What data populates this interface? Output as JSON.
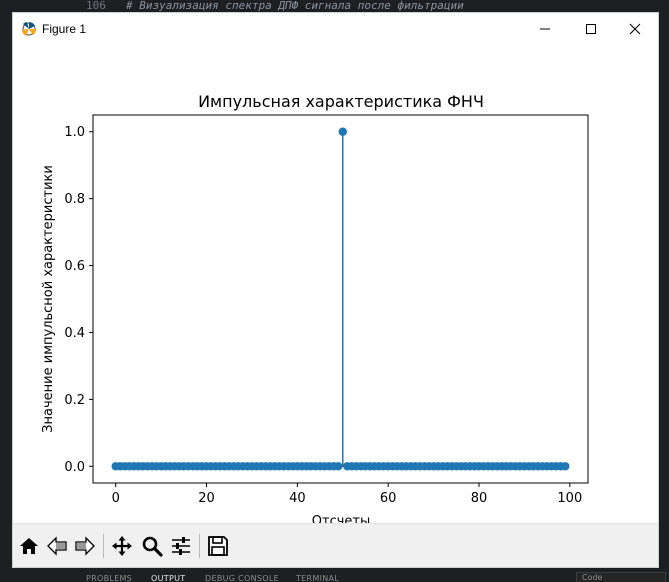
{
  "editor": {
    "line_number": "106",
    "code_comment": "# Визуализация спектра ДПФ сигнала после фильтрации"
  },
  "bottom_panel": {
    "tabs": [
      "PROBLEMS",
      "OUTPUT",
      "DEBUG CONSOLE",
      "TERMINAL"
    ],
    "active_tab": "OUTPUT",
    "side_input_text": "Code"
  },
  "window": {
    "title": "Figure 1",
    "icon": "matplotlib-icon",
    "controls": [
      "minimize-icon",
      "maximize-icon",
      "close-icon"
    ]
  },
  "toolbar": {
    "tools": [
      "home-icon",
      "back-arrow-icon",
      "forward-arrow-icon",
      "pan-move-icon",
      "zoom-magnifier-icon",
      "subplots-config-icon",
      "save-disk-icon"
    ]
  },
  "colors": {
    "stem": "#1f77b4",
    "baseline": "#d62728",
    "axes_frame": "#000000",
    "toolbar_bg": "#f0f0f0"
  },
  "chart_data": {
    "type": "stem",
    "title": "Импульсная характеристика ФНЧ",
    "xlabel": "Отсчеты",
    "ylabel": "Значение импульсной характеристики",
    "xlim": [
      -5,
      104
    ],
    "ylim": [
      -0.05,
      1.05
    ],
    "x_ticks": [
      0,
      20,
      40,
      60,
      80,
      100
    ],
    "x_tick_labels": [
      "0",
      "20",
      "40",
      "60",
      "80",
      "100"
    ],
    "y_ticks": [
      0.0,
      0.2,
      0.4,
      0.6,
      0.8,
      1.0
    ],
    "y_tick_labels": [
      "0.0",
      "0.2",
      "0.4",
      "0.6",
      "0.8",
      "1.0"
    ],
    "grid": false,
    "series": [
      {
        "x_start": 0,
        "x_end": 99,
        "impulse_index": 50,
        "impulse_value": 1.0,
        "other_value": 0.0
      }
    ]
  }
}
